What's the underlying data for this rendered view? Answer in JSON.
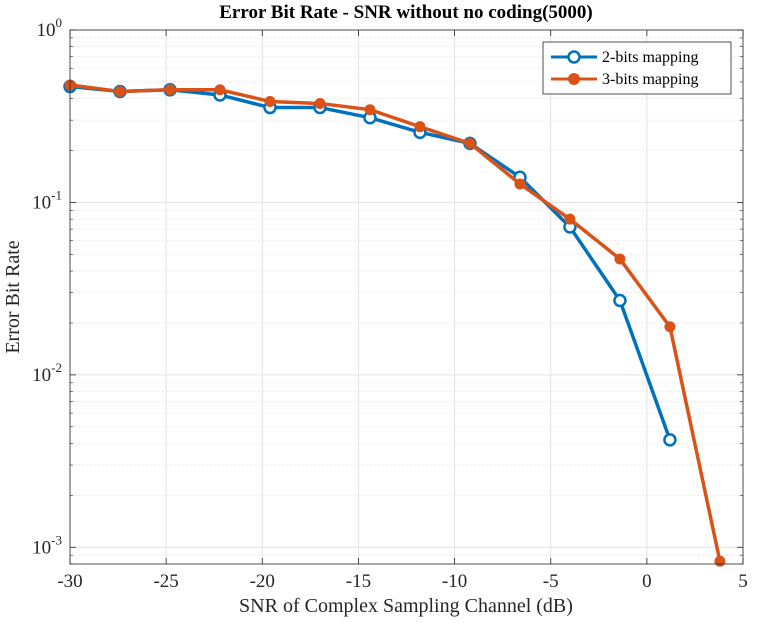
{
  "chart_data": {
    "type": "line",
    "title": "Error Bit Rate - SNR without no coding(5000)",
    "xlabel": "SNR of Complex Sampling Channel (dB)",
    "ylabel": "Error Bit Rate",
    "xlim": [
      -30,
      5
    ],
    "ylim": [
      0.0008,
      1
    ],
    "yscale": "log",
    "xticks": [
      -30,
      -25,
      -20,
      -15,
      -10,
      -5,
      0,
      5
    ],
    "xtick_labels": [
      "-30",
      "-25",
      "-20",
      "-15",
      "-10",
      "-5",
      "0",
      "5"
    ],
    "yticks": [
      {
        "value": 0.001,
        "base": "10",
        "exp": "-3"
      },
      {
        "value": 0.01,
        "base": "10",
        "exp": "-2"
      },
      {
        "value": 0.1,
        "base": "10",
        "exp": "-1"
      },
      {
        "value": 1,
        "base": "10",
        "exp": "0"
      }
    ],
    "grid": true,
    "minor_grid": true,
    "legend_position": "top-right",
    "series": [
      {
        "name": "2-bits mapping",
        "color": "#0072BD",
        "marker": "open-circle",
        "x": [
          -30,
          -27.4,
          -24.8,
          -22.2,
          -19.6,
          -17,
          -14.4,
          -11.8,
          -9.2,
          -6.6,
          -4,
          -1.4,
          1.2
        ],
        "values": [
          0.47,
          0.44,
          0.45,
          0.42,
          0.355,
          0.355,
          0.31,
          0.255,
          0.22,
          0.14,
          0.072,
          0.027,
          0.0042
        ]
      },
      {
        "name": "3-bits mapping",
        "color": "#D95319",
        "marker": "filled-circle",
        "x": [
          -30,
          -27.4,
          -24.8,
          -22.2,
          -19.6,
          -17,
          -14.4,
          -11.8,
          -9.2,
          -6.6,
          -4,
          -1.4,
          1.2,
          3.8
        ],
        "values": [
          0.48,
          0.44,
          0.45,
          0.45,
          0.385,
          0.375,
          0.345,
          0.275,
          0.22,
          0.128,
          0.08,
          0.047,
          0.019,
          0.00083
        ]
      }
    ]
  }
}
